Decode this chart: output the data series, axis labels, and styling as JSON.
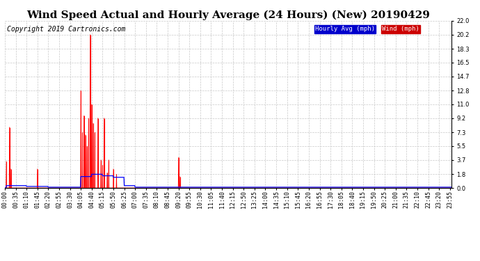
{
  "title": "Wind Speed Actual and Hourly Average (24 Hours) (New) 20190429",
  "copyright": "Copyright 2019 Cartronics.com",
  "ylabel_right_ticks": [
    0.0,
    1.8,
    3.7,
    5.5,
    7.3,
    9.2,
    11.0,
    12.8,
    14.7,
    16.5,
    18.3,
    20.2,
    22.0
  ],
  "background_color": "#ffffff",
  "grid_color": "#c8c8c8",
  "title_fontsize": 11,
  "copyright_fontsize": 7,
  "tick_fontsize": 6,
  "wind_color": "#ff0000",
  "hourly_color": "#0000ff",
  "time_labels": [
    "00:00",
    "00:35",
    "01:10",
    "01:45",
    "02:20",
    "02:55",
    "03:30",
    "04:05",
    "04:40",
    "05:15",
    "05:50",
    "06:25",
    "07:00",
    "07:35",
    "08:10",
    "08:45",
    "09:20",
    "09:55",
    "10:30",
    "11:05",
    "11:40",
    "12:15",
    "12:50",
    "13:25",
    "14:00",
    "14:35",
    "15:10",
    "15:45",
    "16:20",
    "16:55",
    "17:30",
    "18:05",
    "18:40",
    "19:15",
    "19:50",
    "20:25",
    "21:00",
    "21:35",
    "22:10",
    "22:45",
    "23:20",
    "23:55"
  ],
  "wind_spikes": [
    [
      "00:05",
      3.5
    ],
    [
      "00:15",
      8.0
    ],
    [
      "00:20",
      2.5
    ],
    [
      "01:45",
      2.5
    ],
    [
      "04:05",
      12.8
    ],
    [
      "04:10",
      7.3
    ],
    [
      "04:15",
      9.5
    ],
    [
      "04:20",
      7.0
    ],
    [
      "04:25",
      5.5
    ],
    [
      "04:30",
      9.2
    ],
    [
      "04:35",
      20.2
    ],
    [
      "04:40",
      11.0
    ],
    [
      "04:45",
      8.5
    ],
    [
      "04:50",
      7.3
    ],
    [
      "05:00",
      9.2
    ],
    [
      "05:10",
      3.7
    ],
    [
      "05:15",
      3.0
    ],
    [
      "05:20",
      9.2
    ],
    [
      "05:30",
      2.0
    ],
    [
      "05:35",
      3.7
    ],
    [
      "05:50",
      2.5
    ],
    [
      "06:00",
      1.8
    ],
    [
      "09:20",
      4.0
    ],
    [
      "09:25",
      1.5
    ]
  ],
  "hourly_steps": [
    [
      "00:00",
      0.0
    ],
    [
      "00:05",
      0.3
    ],
    [
      "00:35",
      0.3
    ],
    [
      "01:10",
      0.2
    ],
    [
      "01:45",
      0.2
    ],
    [
      "02:20",
      0.1
    ],
    [
      "02:55",
      0.1
    ],
    [
      "03:30",
      0.1
    ],
    [
      "04:05",
      1.5
    ],
    [
      "04:40",
      1.8
    ],
    [
      "05:15",
      1.6
    ],
    [
      "05:50",
      1.4
    ],
    [
      "06:25",
      0.3
    ],
    [
      "07:00",
      0.1
    ],
    [
      "09:55",
      0.1
    ],
    [
      "23:55",
      0.1
    ]
  ]
}
